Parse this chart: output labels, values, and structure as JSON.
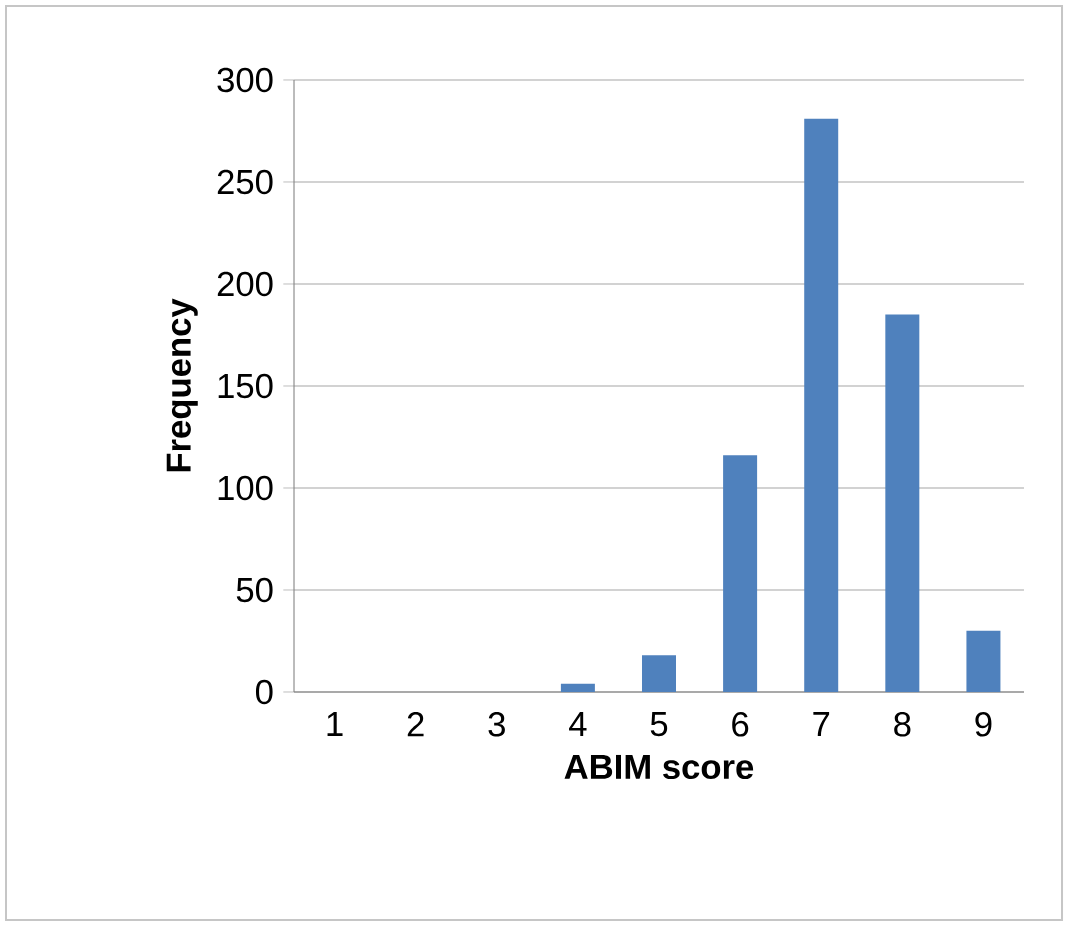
{
  "chart_data": {
    "type": "bar",
    "xlabel": "**ABIM score**",
    "ylabel": "**Frequency**",
    "categories": [
      "1",
      "2",
      "3",
      "4",
      "5",
      "6",
      "7",
      "8",
      "9"
    ],
    "values": [
      0,
      0,
      0,
      4,
      18,
      116,
      281,
      185,
      30
    ],
    "color": "#4f81bd",
    "ylim": [
      0,
      300
    ],
    "yticks": [
      0,
      50,
      100,
      150,
      200,
      250,
      300
    ],
    "grid": "y"
  }
}
